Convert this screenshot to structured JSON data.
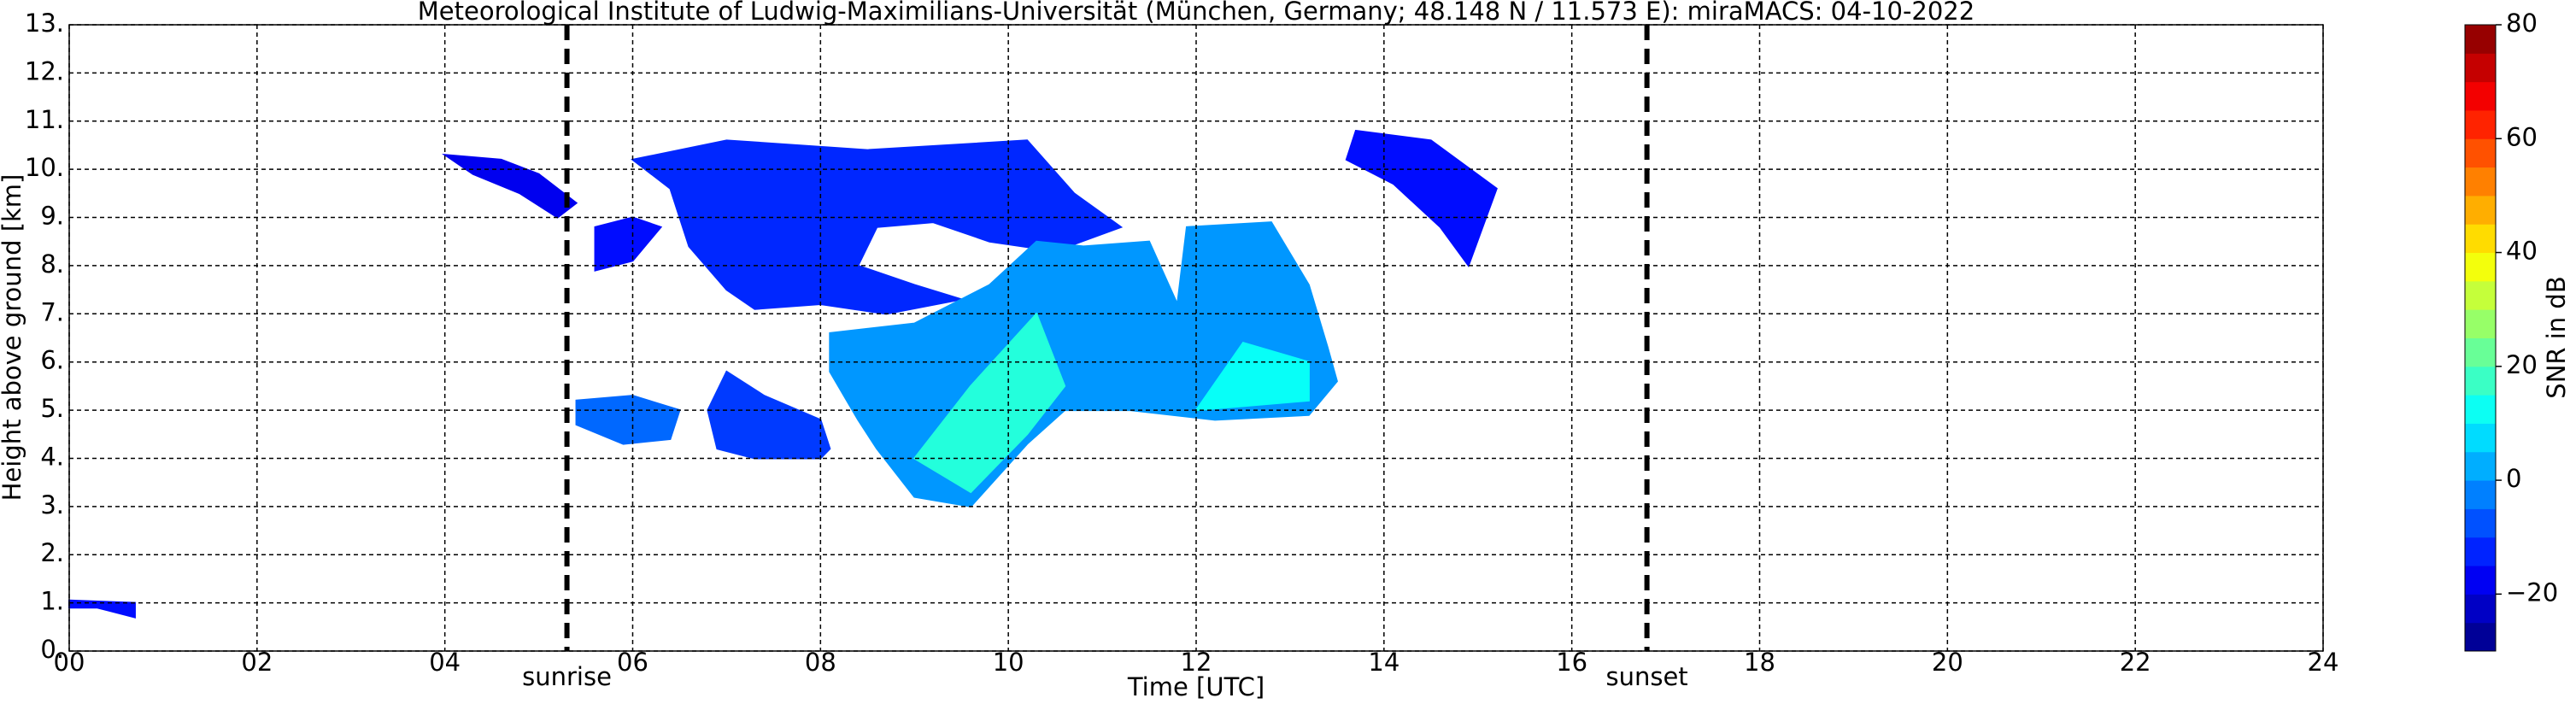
{
  "chart_data": {
    "type": "time-height",
    "title": "Meteorological Institute of Ludwig-Maximilians-Universität (München, Germany; 48.148 N / 11.573 E):    miraMACS: 04-10-2022",
    "xlabel": "Time [UTC]",
    "ylabel": "Height above ground [km]",
    "xlim": [
      0,
      24
    ],
    "xticks": [
      {
        "value": 0,
        "label": "00"
      },
      {
        "value": 2,
        "label": "02"
      },
      {
        "value": 4,
        "label": "04"
      },
      {
        "value": 6,
        "label": "06"
      },
      {
        "value": 8,
        "label": "08"
      },
      {
        "value": 10,
        "label": "10"
      },
      {
        "value": 12,
        "label": "12"
      },
      {
        "value": 14,
        "label": "14"
      },
      {
        "value": 16,
        "label": "16"
      },
      {
        "value": 18,
        "label": "18"
      },
      {
        "value": 20,
        "label": "20"
      },
      {
        "value": 22,
        "label": "22"
      },
      {
        "value": 24,
        "label": "24"
      }
    ],
    "ylim": [
      0,
      13
    ],
    "yticks": [
      {
        "value": 0,
        "label": "0."
      },
      {
        "value": 1,
        "label": "1."
      },
      {
        "value": 2,
        "label": "2."
      },
      {
        "value": 3,
        "label": "3."
      },
      {
        "value": 4,
        "label": "4."
      },
      {
        "value": 5,
        "label": "5."
      },
      {
        "value": 6,
        "label": "6."
      },
      {
        "value": 7,
        "label": "7."
      },
      {
        "value": 8,
        "label": "8."
      },
      {
        "value": 9,
        "label": "9."
      },
      {
        "value": 10,
        "label": "10."
      },
      {
        "value": 11,
        "label": "11."
      },
      {
        "value": 12,
        "label": "12."
      },
      {
        "value": 13,
        "label": "13."
      }
    ],
    "grid": true,
    "colormap": "jet",
    "colorbar_label": "SNR in dB",
    "clim": [
      -30,
      80
    ],
    "cticks": [
      {
        "value": -20,
        "label": "−20"
      },
      0,
      20,
      40,
      60,
      80
    ],
    "markers": [
      {
        "x": 5.3,
        "label": "sunrise"
      },
      {
        "x": 16.8,
        "label": "sunset"
      }
    ],
    "echoes": [
      {
        "snr": -12,
        "points": [
          [
            6.0,
            10.2
          ],
          [
            7.0,
            10.6
          ],
          [
            8.5,
            10.4
          ],
          [
            10.2,
            10.6
          ],
          [
            10.7,
            9.5
          ],
          [
            11.2,
            8.8
          ],
          [
            10.5,
            8.3
          ],
          [
            9.8,
            8.5
          ],
          [
            9.2,
            8.9
          ],
          [
            8.6,
            8.8
          ],
          [
            8.4,
            8.0
          ],
          [
            9.0,
            7.6
          ],
          [
            9.5,
            7.3
          ],
          [
            8.7,
            7.0
          ],
          [
            8.0,
            7.2
          ],
          [
            7.3,
            7.1
          ],
          [
            7.0,
            7.5
          ],
          [
            6.6,
            8.4
          ],
          [
            6.4,
            9.6
          ]
        ]
      },
      {
        "snr": -15,
        "points": [
          [
            5.6,
            8.8
          ],
          [
            6.0,
            9.0
          ],
          [
            6.3,
            8.8
          ],
          [
            6.0,
            8.1
          ],
          [
            5.6,
            7.9
          ]
        ]
      },
      {
        "snr": 0,
        "points": [
          [
            8.1,
            6.6
          ],
          [
            9.0,
            6.8
          ],
          [
            9.8,
            7.6
          ],
          [
            10.3,
            8.5
          ],
          [
            10.8,
            8.4
          ],
          [
            11.5,
            8.5
          ],
          [
            11.8,
            7.2
          ],
          [
            11.9,
            8.8
          ],
          [
            12.8,
            8.9
          ],
          [
            13.2,
            7.6
          ],
          [
            13.4,
            6.3
          ],
          [
            13.5,
            5.6
          ],
          [
            13.2,
            4.9
          ],
          [
            12.2,
            4.8
          ],
          [
            11.3,
            5.0
          ],
          [
            10.6,
            5.0
          ],
          [
            10.2,
            4.3
          ],
          [
            9.6,
            3.0
          ],
          [
            9.0,
            3.2
          ],
          [
            8.6,
            4.2
          ],
          [
            8.4,
            4.8
          ],
          [
            8.1,
            5.8
          ]
        ]
      },
      {
        "snr": 15,
        "points": [
          [
            9.0,
            4.0
          ],
          [
            9.6,
            5.5
          ],
          [
            10.3,
            7.0
          ],
          [
            10.6,
            5.5
          ],
          [
            10.2,
            4.5
          ],
          [
            9.6,
            3.3
          ]
        ]
      },
      {
        "snr": 12,
        "points": [
          [
            12.0,
            5.0
          ],
          [
            12.5,
            6.4
          ],
          [
            13.2,
            6.0
          ],
          [
            13.2,
            5.2
          ]
        ]
      },
      {
        "snr": -10,
        "points": [
          [
            7.0,
            5.8
          ],
          [
            7.4,
            5.3
          ],
          [
            8.0,
            4.8
          ],
          [
            8.1,
            4.2
          ],
          [
            8.0,
            4.0
          ],
          [
            7.3,
            4.0
          ],
          [
            6.9,
            4.2
          ],
          [
            6.8,
            5.0
          ]
        ]
      },
      {
        "snr": -5,
        "points": [
          [
            5.4,
            5.2
          ],
          [
            6.0,
            5.3
          ],
          [
            6.5,
            5.0
          ],
          [
            6.4,
            4.4
          ],
          [
            5.9,
            4.3
          ],
          [
            5.4,
            4.7
          ]
        ]
      },
      {
        "snr": -18,
        "points": [
          [
            4.0,
            10.3
          ],
          [
            4.6,
            10.2
          ],
          [
            5.0,
            9.9
          ],
          [
            5.4,
            9.3
          ],
          [
            5.2,
            9.0
          ],
          [
            4.8,
            9.5
          ],
          [
            4.3,
            9.9
          ]
        ]
      },
      {
        "snr": -15,
        "points": [
          [
            13.7,
            10.8
          ],
          [
            14.5,
            10.6
          ],
          [
            15.2,
            9.6
          ],
          [
            14.9,
            8.0
          ],
          [
            14.6,
            8.8
          ],
          [
            14.1,
            9.7
          ],
          [
            13.6,
            10.2
          ]
        ]
      },
      {
        "snr": -15,
        "points": [
          [
            0,
            1.05
          ],
          [
            0.7,
            1.0
          ],
          [
            0.7,
            0.7
          ],
          [
            0.3,
            0.9
          ],
          [
            0,
            0.9
          ]
        ]
      }
    ]
  }
}
